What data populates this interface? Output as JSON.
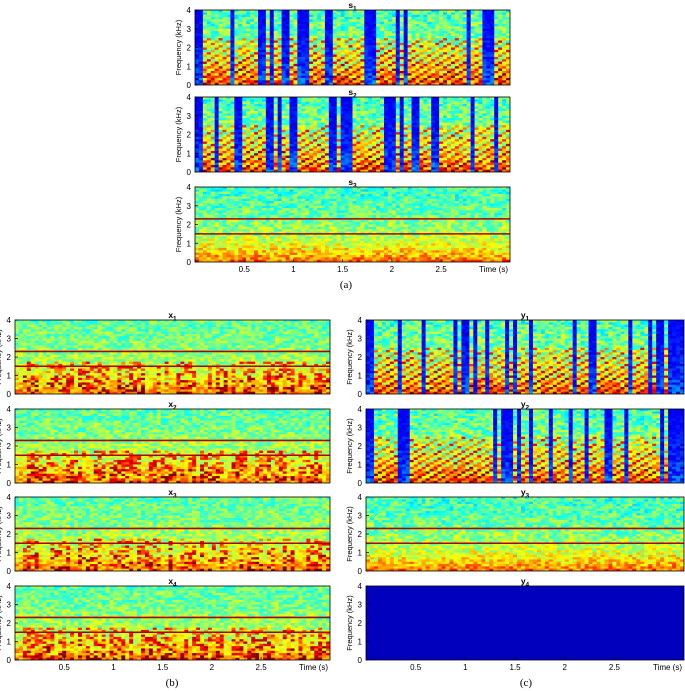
{
  "chart_data": {
    "type": "heatmap",
    "ylabel": "Frequency (kHz)",
    "xlabel": "Time (s)",
    "yticks": [
      "0",
      "1",
      "2",
      "3",
      "4"
    ],
    "xticks": [
      "0.5",
      "1",
      "1.5",
      "2",
      "2.5"
    ],
    "ylim": [
      0,
      4
    ],
    "xlim": [
      0,
      3.2
    ],
    "colormap": "jet",
    "colors": {
      "low": "#00008f",
      "mid": "#29c5cc",
      "high": "#c00000"
    },
    "groups": [
      {
        "caption": "(a)",
        "panels": [
          {
            "title": "s",
            "sub": "1",
            "content": "speech"
          },
          {
            "title": "s",
            "sub": "2",
            "content": "speech"
          },
          {
            "title": "s",
            "sub": "3",
            "content": "noise with tones",
            "tone_lines_khz": [
              1.5,
              2.3
            ]
          }
        ]
      },
      {
        "caption": "(b)",
        "panels": [
          {
            "title": "x",
            "sub": "1",
            "content": "mixture",
            "tone_lines_khz": [
              1.5,
              2.3
            ]
          },
          {
            "title": "x",
            "sub": "2",
            "content": "mixture",
            "tone_lines_khz": [
              1.5,
              2.3
            ]
          },
          {
            "title": "x",
            "sub": "3",
            "content": "mixture",
            "tone_lines_khz": [
              1.5,
              2.3
            ]
          },
          {
            "title": "x",
            "sub": "4",
            "content": "mixture",
            "tone_lines_khz": [
              1.5,
              2.3
            ]
          }
        ]
      },
      {
        "caption": "(c)",
        "panels": [
          {
            "title": "y",
            "sub": "1",
            "content": "speech"
          },
          {
            "title": "y",
            "sub": "2",
            "content": "speech"
          },
          {
            "title": "y",
            "sub": "3",
            "content": "noise with tones",
            "tone_lines_khz": [
              1.5,
              2.3
            ]
          },
          {
            "title": "y",
            "sub": "4",
            "content": "empty"
          }
        ]
      }
    ]
  }
}
